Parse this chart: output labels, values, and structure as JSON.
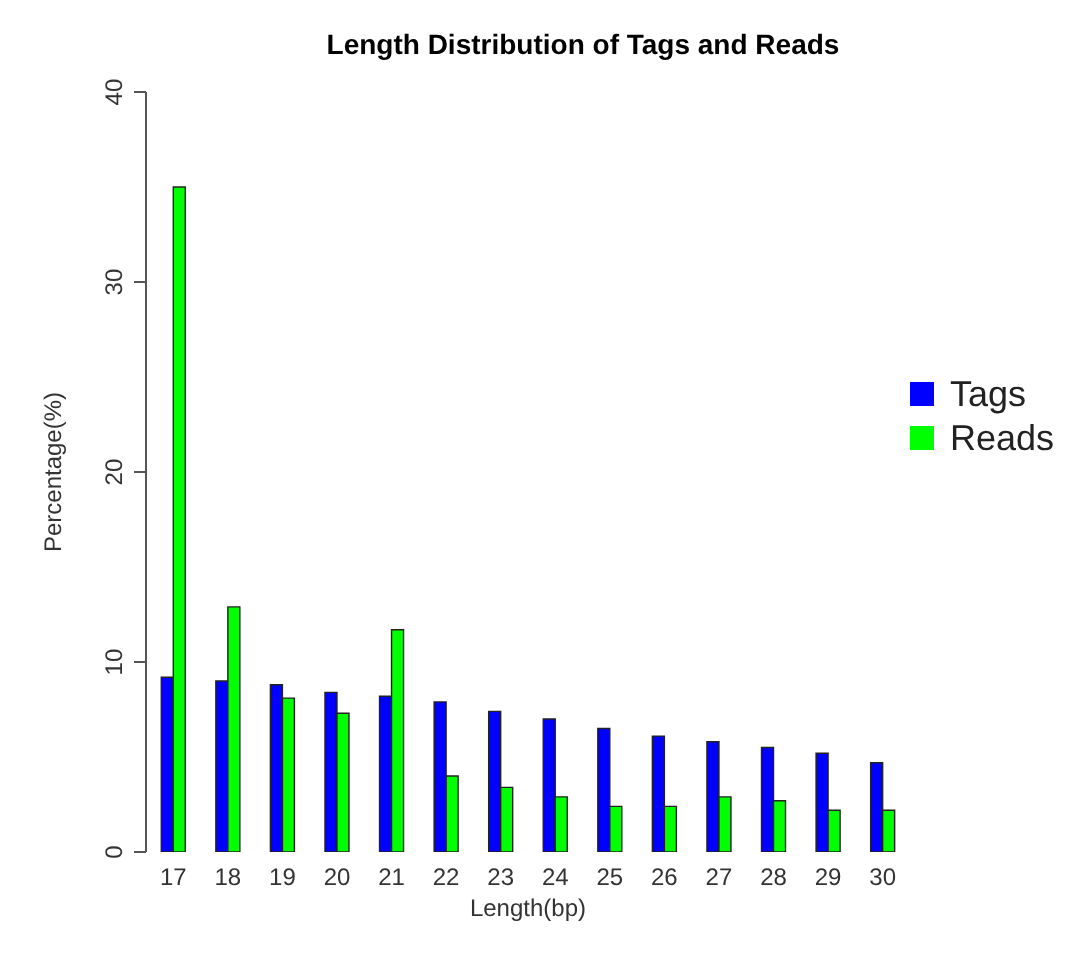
{
  "chart_data": {
    "type": "bar",
    "title": "Length Distribution of Tags and Reads",
    "xlabel": "Length(bp)",
    "ylabel": "Percentage(%)",
    "categories": [
      "17",
      "18",
      "19",
      "20",
      "21",
      "22",
      "23",
      "24",
      "25",
      "26",
      "27",
      "28",
      "29",
      "30"
    ],
    "series": [
      {
        "name": "Tags",
        "color": "#0000ff",
        "values": [
          9.2,
          9.0,
          8.8,
          8.4,
          8.2,
          7.9,
          7.4,
          7.0,
          6.5,
          6.1,
          5.8,
          5.5,
          5.2,
          4.7
        ]
      },
      {
        "name": "Reads",
        "color": "#00ff00",
        "values": [
          35.0,
          12.9,
          8.1,
          7.3,
          11.7,
          4.0,
          3.4,
          2.9,
          2.4,
          2.4,
          2.9,
          2.7,
          2.2,
          2.2
        ]
      }
    ],
    "ylim": [
      0,
      40
    ],
    "yticks": [
      0,
      10,
      20,
      30,
      40
    ],
    "grid": false,
    "legend": "right"
  }
}
